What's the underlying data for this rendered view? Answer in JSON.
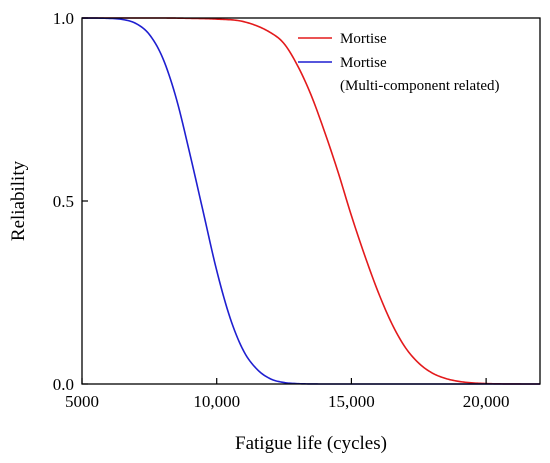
{
  "chart_data": {
    "type": "line",
    "xlabel": "Fatigue life (cycles)",
    "ylabel": "Reliability",
    "xlim": [
      5000,
      22000
    ],
    "ylim": [
      0,
      1
    ],
    "x_ticks": [
      5000,
      10000,
      15000,
      20000
    ],
    "x_tick_labels": [
      "5000",
      "10,000",
      "15,000",
      "20,000"
    ],
    "y_ticks": [
      0,
      0.5,
      1
    ],
    "y_tick_labels": [
      "0.0",
      "0.5",
      "1.0"
    ],
    "grid": false,
    "legend_position": "top-right",
    "series": [
      {
        "name": "Mortise",
        "color": "#e31a1c",
        "x": [
          5000,
          8000,
          9000,
          10000,
          11000,
          12000,
          12500,
          13000,
          13500,
          14000,
          14500,
          15000,
          15500,
          16000,
          16500,
          17000,
          17500,
          18000,
          18500,
          19000,
          19500,
          20000,
          20500,
          21000,
          22000
        ],
        "y": [
          1.0,
          1.0,
          0.999,
          0.997,
          0.99,
          0.96,
          0.93,
          0.87,
          0.79,
          0.69,
          0.58,
          0.46,
          0.35,
          0.25,
          0.165,
          0.1,
          0.057,
          0.03,
          0.015,
          0.007,
          0.003,
          0.0012,
          0.0004,
          0.0001,
          0.0
        ]
      },
      {
        "name": "Mortise",
        "name_line2": "(Multi-component related)",
        "color": "#1f1fd0",
        "x": [
          5000,
          6000,
          6500,
          7000,
          7500,
          8000,
          8500,
          9000,
          9500,
          10000,
          10500,
          11000,
          11500,
          12000,
          12500,
          13000,
          13500,
          14000,
          15000,
          22000
        ],
        "y": [
          1.0,
          0.999,
          0.996,
          0.985,
          0.955,
          0.89,
          0.78,
          0.63,
          0.47,
          0.31,
          0.18,
          0.09,
          0.04,
          0.014,
          0.004,
          0.001,
          0.0002,
          0.0,
          0.0,
          0.0
        ]
      }
    ]
  }
}
